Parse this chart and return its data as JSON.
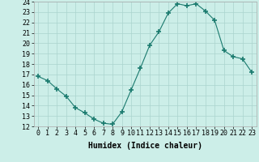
{
  "x": [
    0,
    1,
    2,
    3,
    4,
    5,
    6,
    7,
    8,
    9,
    10,
    11,
    12,
    13,
    14,
    15,
    16,
    17,
    18,
    19,
    20,
    21,
    22,
    23
  ],
  "y": [
    16.8,
    16.4,
    15.6,
    14.9,
    13.8,
    13.3,
    12.7,
    12.3,
    12.2,
    13.4,
    15.5,
    17.6,
    19.8,
    21.1,
    22.9,
    23.8,
    23.6,
    23.8,
    23.1,
    22.2,
    19.3,
    18.7,
    18.5,
    17.2
  ],
  "xlabel": "Humidex (Indice chaleur)",
  "ylim": [
    12,
    24
  ],
  "xlim": [
    -0.5,
    23.5
  ],
  "yticks": [
    12,
    13,
    14,
    15,
    16,
    17,
    18,
    19,
    20,
    21,
    22,
    23,
    24
  ],
  "xticks": [
    0,
    1,
    2,
    3,
    4,
    5,
    6,
    7,
    8,
    9,
    10,
    11,
    12,
    13,
    14,
    15,
    16,
    17,
    18,
    19,
    20,
    21,
    22,
    23
  ],
  "xtick_labels": [
    "0",
    "1",
    "2",
    "3",
    "4",
    "5",
    "6",
    "7",
    "8",
    "9",
    "10",
    "11",
    "12",
    "13",
    "14",
    "15",
    "16",
    "17",
    "18",
    "19",
    "20",
    "21",
    "22",
    "23"
  ],
  "line_color": "#1a7a6e",
  "marker": "+",
  "marker_size": 4,
  "bg_color": "#cceee8",
  "grid_color": "#aad4ce",
  "fig_bg": "#cceee8",
  "tick_font_size": 6,
  "xlabel_font_size": 7,
  "xlabel_font_weight": "bold"
}
